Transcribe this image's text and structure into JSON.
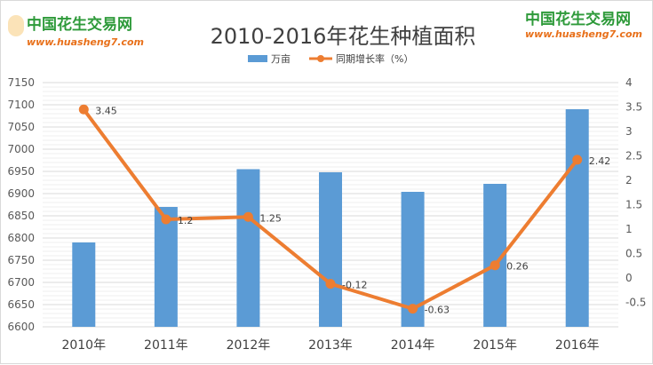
{
  "logo": {
    "name": "中国花生交易网",
    "url": "www.huasheng7.com"
  },
  "chart_data": {
    "type": "bar+line",
    "title": "2010-2016年花生种植面积",
    "categories": [
      "2010年",
      "2011年",
      "2012年",
      "2013年",
      "2014年",
      "2015年",
      "2016年"
    ],
    "series": [
      {
        "name": "万亩",
        "type": "bar",
        "axis": "left",
        "color": "#5b9bd5",
        "values": [
          6790,
          6870,
          6955,
          6948,
          6904,
          6922,
          7090
        ]
      },
      {
        "name": "同期增长率（%）",
        "type": "line",
        "axis": "right",
        "color": "#ed7d31",
        "values": [
          3.45,
          1.2,
          1.25,
          -0.12,
          -0.63,
          0.26,
          2.42
        ],
        "labels": [
          "3.45",
          "1.2",
          "1.25",
          "-0.12",
          "-0.63",
          "0.26",
          "2.42"
        ]
      }
    ],
    "y_left": {
      "min": 6600,
      "max": 7150,
      "step": 50,
      "ticks": [
        "6600",
        "6650",
        "6700",
        "6750",
        "6800",
        "6850",
        "6900",
        "6950",
        "7000",
        "7050",
        "7100",
        "7150"
      ]
    },
    "y_right": {
      "min": -1,
      "max": 4,
      "step": 0.5,
      "ticks": [
        "-0.5",
        "0",
        "0.5",
        "1",
        "1.5",
        "2",
        "2.5",
        "3",
        "3.5",
        "4"
      ]
    },
    "legend": "top-center",
    "grid": true
  }
}
